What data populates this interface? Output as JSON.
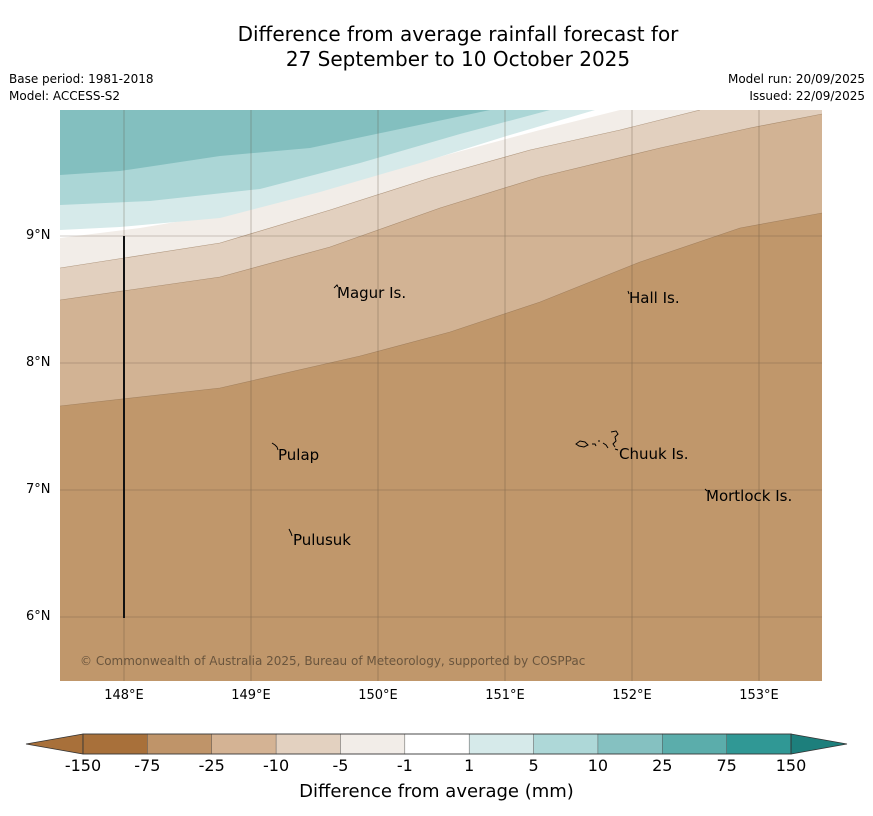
{
  "title": {
    "line1": "Difference from average rainfall forecast for",
    "line2": "27 September to 10 October 2025"
  },
  "meta": {
    "base_period": "Base period: 1981-2018",
    "model": "Model: ACCESS-S2",
    "model_run": "Model run: 20/09/2025",
    "issued": "Issued: 22/09/2025"
  },
  "map": {
    "lat_labels": [
      "9°N",
      "8°N",
      "7°N",
      "6°N"
    ],
    "lon_labels": [
      "148°E",
      "149°E",
      "150°E",
      "151°E",
      "152°E",
      "153°E"
    ],
    "places": {
      "magur": "Magur Is.",
      "hall": "Hall Is.",
      "pulap": "Pulap",
      "chuuk": "Chuuk Is.",
      "mortlock": "Mortlock Is.",
      "pulusuk": "Pulusuk"
    },
    "copyright": "© Commonwealth of Australia 2025, Bureau of Meteorology, supported by COSPPac"
  },
  "colorbar": {
    "ticks": [
      "-150",
      "-75",
      "-25",
      "-10",
      "-5",
      "-1",
      "1",
      "5",
      "10",
      "25",
      "75",
      "150"
    ],
    "colors": [
      "#a8703a",
      "#bf9469",
      "#d4b394",
      "#e3d1c0",
      "#f2ede8",
      "#ffffff",
      "#d6eaea",
      "#aed8d8",
      "#85c1c1",
      "#5badab",
      "#309895",
      "#1d7f7c"
    ],
    "label": "Difference from average (mm)"
  }
}
